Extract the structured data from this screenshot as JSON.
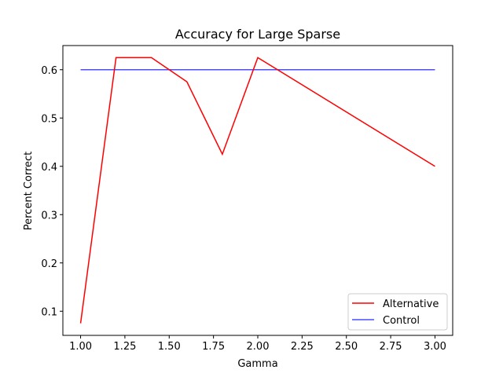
{
  "chart_data": {
    "type": "line",
    "title": "Accuracy for Large Sparse",
    "xlabel": "Gamma",
    "ylabel": "Percent Correct",
    "xlim": [
      0.9,
      3.1
    ],
    "ylim": [
      0.05,
      0.65
    ],
    "xticks": [
      1.0,
      1.25,
      1.5,
      1.75,
      2.0,
      2.25,
      2.5,
      2.75,
      3.0
    ],
    "xtick_labels": [
      "1.00",
      "1.25",
      "1.50",
      "1.75",
      "2.00",
      "2.25",
      "2.50",
      "2.75",
      "3.00"
    ],
    "yticks": [
      0.1,
      0.2,
      0.3,
      0.4,
      0.5,
      0.6
    ],
    "ytick_labels": [
      "0.1",
      "0.2",
      "0.3",
      "0.4",
      "0.5",
      "0.6"
    ],
    "grid": false,
    "legend_position": "lower-right",
    "series": [
      {
        "name": "Alternative",
        "color": "#ff0000",
        "x": [
          1.0,
          1.2,
          1.4,
          1.6,
          1.8,
          2.0,
          3.0
        ],
        "y": [
          0.075,
          0.625,
          0.625,
          0.575,
          0.425,
          0.625,
          0.4
        ]
      },
      {
        "name": "Control",
        "color": "#4d4dff",
        "x": [
          1.0,
          3.0
        ],
        "y": [
          0.6,
          0.6
        ]
      }
    ]
  }
}
